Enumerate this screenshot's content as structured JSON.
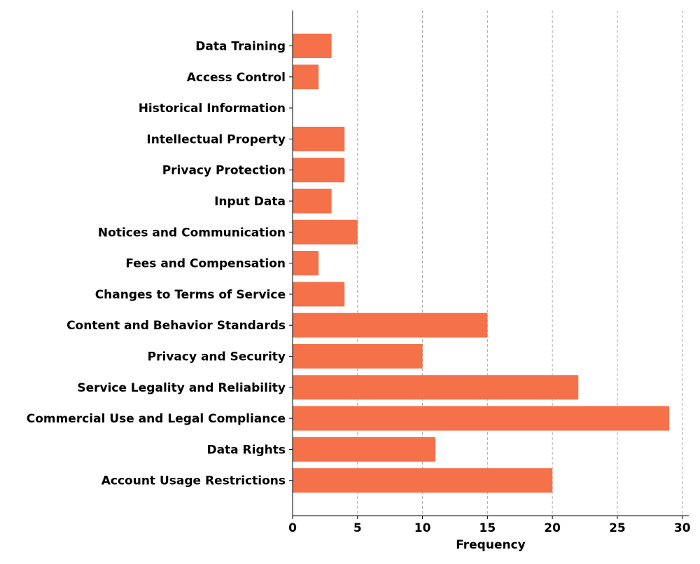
{
  "chart_data": {
    "type": "bar",
    "orientation": "horizontal",
    "categories": [
      "Data Training",
      "Access Control",
      "Historical Information",
      "Intellectual Property",
      "Privacy Protection",
      "Input Data",
      "Notices and Communication",
      "Fees and Compensation",
      "Changes to Terms of Service",
      "Content and Behavior Standards",
      "Privacy and Security",
      "Service Legality and Reliability",
      "Commercial Use and Legal Compliance",
      "Data Rights",
      "Account Usage Restrictions"
    ],
    "values": [
      3,
      2,
      0,
      4,
      4,
      3,
      5,
      2,
      4,
      15,
      10,
      22,
      29,
      11,
      20
    ],
    "xlabel": "Frequency",
    "ylabel": "",
    "xlim": [
      0,
      30.5
    ],
    "xticks": [
      0,
      5,
      10,
      15,
      20,
      25,
      30
    ],
    "grid": "x-dashed",
    "bar_color": "#f4714a"
  }
}
